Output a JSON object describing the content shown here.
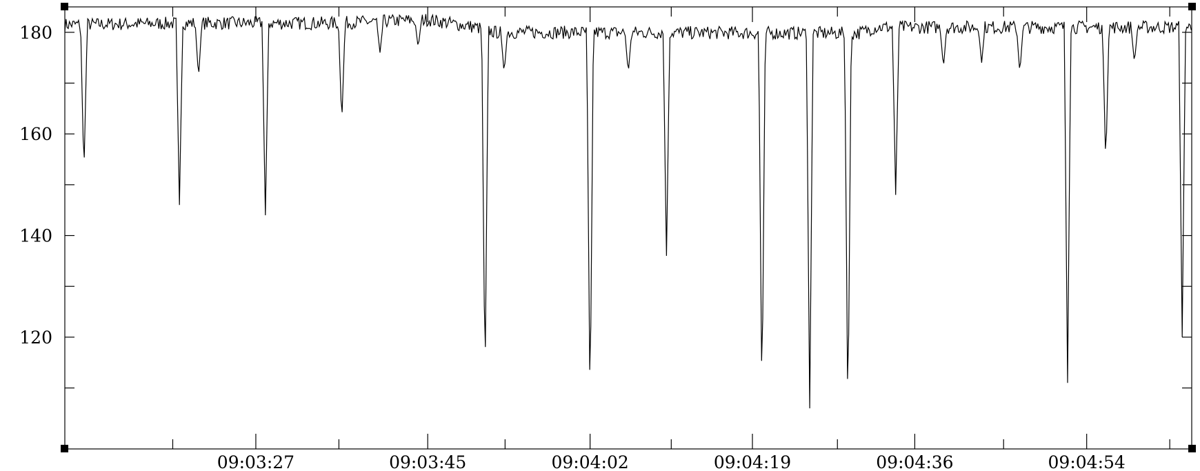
{
  "chart_data": {
    "type": "line",
    "title": "",
    "xlabel": "",
    "ylabel": "",
    "x_unit": "seconds",
    "x_range": [
      "09:03:07",
      "09:05:05"
    ],
    "ylim": [
      98,
      185
    ],
    "y_ticks": [
      120,
      140,
      160,
      180
    ],
    "y_tick_labels": [
      "120",
      "140",
      "160",
      "180"
    ],
    "x_tick_labels": [
      "09:03:27",
      "09:03:45",
      "09:04:02",
      "09:04:19",
      "09:04:36",
      "09:04:54"
    ],
    "x_tick_times": [
      "09:03:27",
      "09:03:45",
      "09:04:02",
      "09:04:19",
      "09:04:36",
      "09:04:54"
    ],
    "grid": false,
    "legend": "none",
    "baseline_level": 180.5,
    "noise_amplitude": 1.3,
    "series": [
      {
        "baseline": [
          [
            "09:03:07",
            181.5
          ],
          [
            "09:03:20",
            181.8
          ],
          [
            "09:03:35",
            181.8
          ],
          [
            "09:03:45",
            182.5
          ],
          [
            "09:03:50",
            181.0
          ],
          [
            "09:03:52",
            180.0
          ],
          [
            "09:04:00",
            180.0
          ],
          [
            "09:04:30",
            179.8
          ],
          [
            "09:04:32",
            181.0
          ],
          [
            "09:05:05",
            181.0
          ]
        ],
        "dips": [
          [
            "09:03:09",
            152
          ],
          [
            "09:03:19",
            146
          ],
          [
            "09:03:21",
            171
          ],
          [
            "09:03:28",
            144
          ],
          [
            "09:03:36",
            162
          ],
          [
            "09:03:40",
            176
          ],
          [
            "09:03:44",
            177
          ],
          [
            "09:03:51",
            110
          ],
          [
            "09:03:53",
            172
          ],
          [
            "09:04:02",
            105
          ],
          [
            "09:04:06",
            172
          ],
          [
            "09:04:10",
            136
          ],
          [
            "09:04:20",
            107
          ],
          [
            "09:04:25",
            106
          ],
          [
            "09:04:29",
            103
          ],
          [
            "09:04:34",
            148
          ],
          [
            "09:04:39",
            173
          ],
          [
            "09:04:43",
            174
          ],
          [
            "09:04:47",
            172
          ],
          [
            "09:04:52",
            111
          ],
          [
            "09:04:56",
            154
          ],
          [
            "09:04:59",
            174
          ],
          [
            "09:05:04",
            120
          ]
        ]
      }
    ]
  }
}
